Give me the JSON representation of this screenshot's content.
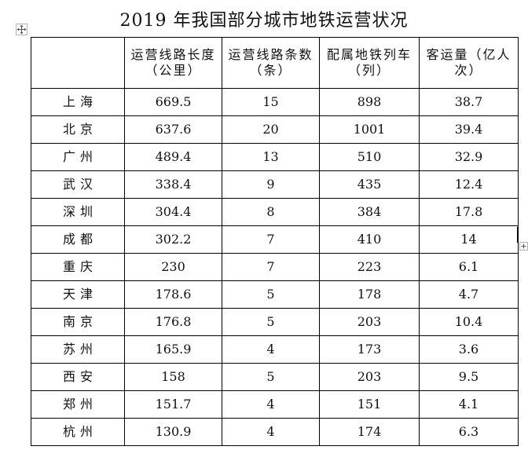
{
  "title": "2019 年我国部分城市地铁运营状况",
  "table": {
    "headers": [
      "",
      "运营线路长度（公里）",
      "运营线路条数（条）",
      "配属地铁列车（列）",
      "客运量（亿人次）"
    ],
    "rows": [
      [
        "上海",
        "669.5",
        "15",
        "898",
        "38.7"
      ],
      [
        "北京",
        "637.6",
        "20",
        "1001",
        "39.4"
      ],
      [
        "广州",
        "489.4",
        "13",
        "510",
        "32.9"
      ],
      [
        "武汉",
        "338.4",
        "9",
        "435",
        "12.4"
      ],
      [
        "深圳",
        "304.4",
        "8",
        "384",
        "17.8"
      ],
      [
        "成都",
        "302.2",
        "7",
        "410",
        "14"
      ],
      [
        "重庆",
        "230",
        "7",
        "223",
        "6.1"
      ],
      [
        "天津",
        "178.6",
        "5",
        "178",
        "4.7"
      ],
      [
        "南京",
        "176.8",
        "5",
        "203",
        "10.4"
      ],
      [
        "苏州",
        "165.9",
        "4",
        "173",
        "3.6"
      ],
      [
        "西安",
        "158",
        "5",
        "203",
        "9.5"
      ],
      [
        "郑州",
        "151.7",
        "4",
        "151",
        "4.1"
      ],
      [
        "杭州",
        "130.9",
        "4",
        "174",
        "6.3"
      ]
    ]
  },
  "icons": {
    "move_handle": "four-arrows-move-icon",
    "resize_handle": "plus-resize-icon"
  },
  "colors": {
    "text": "#111111",
    "border": "#000000",
    "handle_border": "#b5b5b5"
  }
}
